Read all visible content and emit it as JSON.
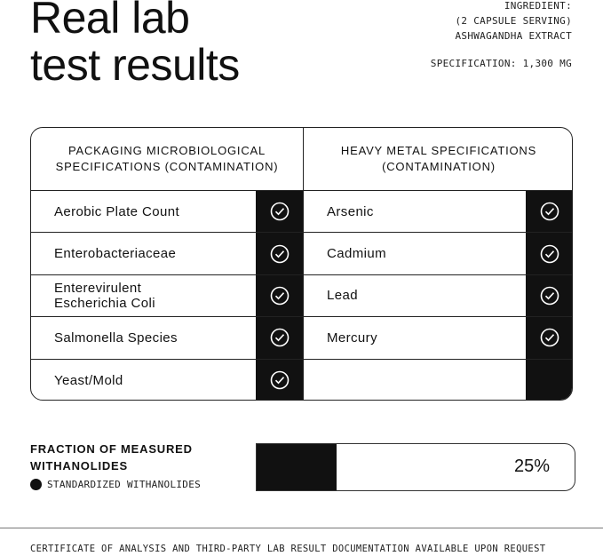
{
  "title": [
    "Real lab",
    "test results"
  ],
  "ingredient": {
    "label": "INGREDIENT:",
    "serving": "(2 CAPSULE SERVING)",
    "name": "ASHWAGANDHA EXTRACT",
    "specification": "SPECIFICATION: 1,300 MG"
  },
  "microbiological": {
    "header": [
      "PACKAGING MICROBIOLOGICAL",
      "SPECIFICATIONS (CONTAMINATION)"
    ],
    "items": [
      {
        "label": "Aerobic Plate Count",
        "passed": true
      },
      {
        "label": "Enterobacteriaceae",
        "passed": true
      },
      {
        "label": "Enterevirulent\nEscherichia Coli",
        "passed": true
      },
      {
        "label": "Salmonella Species",
        "passed": true
      },
      {
        "label": "Yeast/Mold",
        "passed": true
      }
    ]
  },
  "heavy_metals": {
    "header": [
      "HEAVY METAL SPECIFICATIONS",
      "(CONTAMINATION)"
    ],
    "items": [
      {
        "label": "Arsenic",
        "passed": true
      },
      {
        "label": "Cadmium",
        "passed": true
      },
      {
        "label": "Lead",
        "passed": true
      },
      {
        "label": "Mercury",
        "passed": true
      }
    ]
  },
  "withanolides": {
    "title": [
      "FRACTION OF MEASURED",
      "WITHANOLIDES"
    ],
    "legend": "STANDARDIZED WITHANOLIDES",
    "value_percent": 25,
    "value_label": "25%"
  },
  "footer": "CERTIFICATE OF ANALYSIS AND THIRD-PARTY LAB RESULT DOCUMENTATION AVAILABLE UPON REQUEST",
  "colors": {
    "ink": "#111111",
    "background": "#ffffff"
  }
}
